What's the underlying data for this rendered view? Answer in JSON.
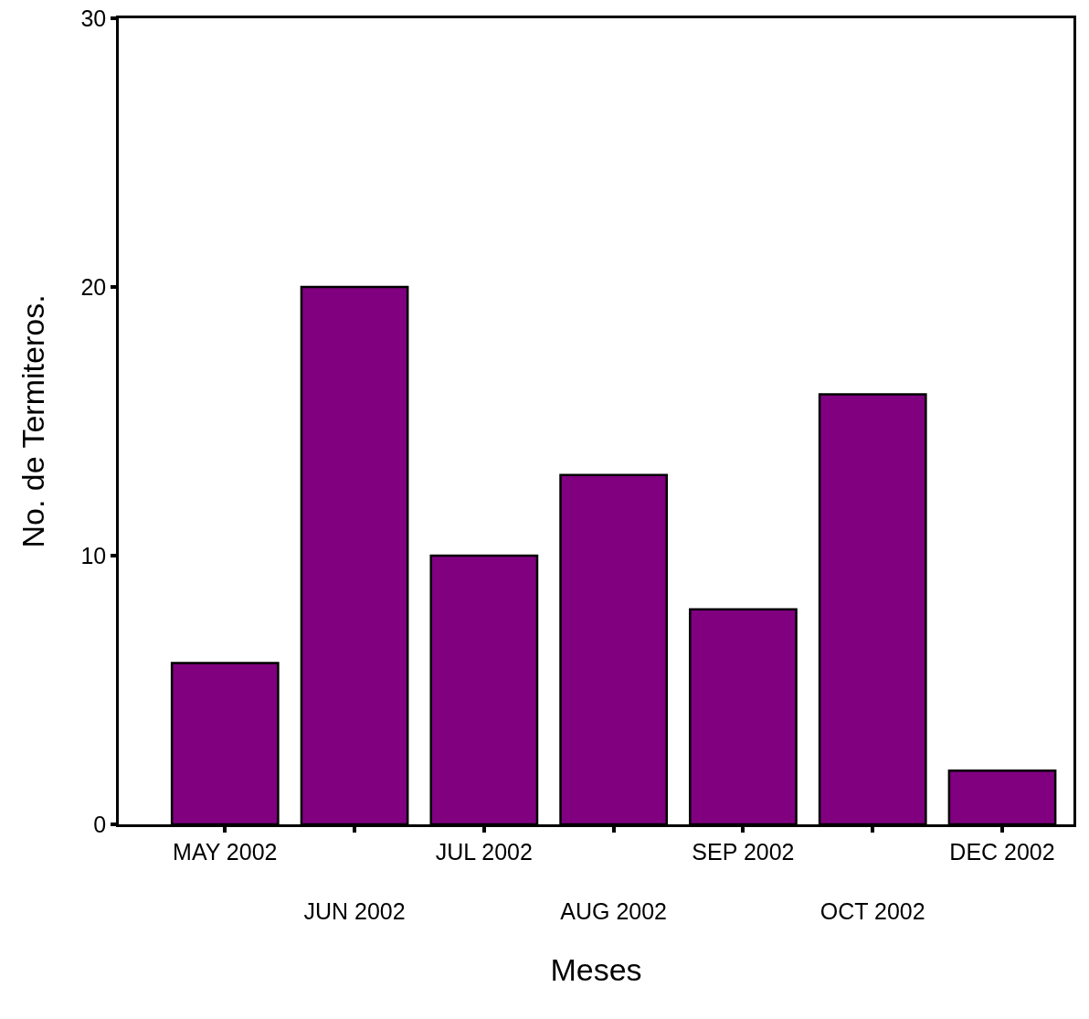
{
  "chart_data": {
    "type": "bar",
    "xlabel": "Meses",
    "ylabel": "No. de Termiteros.",
    "categories": [
      "MAY 2002",
      "JUN 2002",
      "JUL 2002",
      "AUG 2002",
      "SEP 2002",
      "OCT 2002",
      "DEC 2002"
    ],
    "values": [
      6,
      20,
      10,
      13,
      8,
      16,
      2
    ],
    "color": "#800080",
    "ylim": [
      0,
      30
    ],
    "yticks": [
      0,
      10,
      20,
      30
    ],
    "grid": false
  }
}
